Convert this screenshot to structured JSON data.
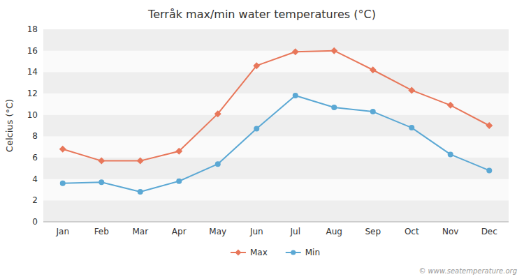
{
  "chart_data": {
    "type": "line",
    "title": "Terråk max/min water temperatures (°C)",
    "y_label": "Celcius (°C)",
    "annotations": [
      "© www.seatemperature.org"
    ],
    "categories": [
      "Jan",
      "Feb",
      "Mar",
      "Apr",
      "May",
      "Jun",
      "Jul",
      "Aug",
      "Sep",
      "Oct",
      "Nov",
      "Dec"
    ],
    "series": [
      {
        "name": "Max",
        "color": "#e8775a",
        "marker": "diamond",
        "values": [
          6.8,
          5.7,
          5.7,
          6.6,
          10.1,
          14.6,
          15.9,
          16.0,
          14.2,
          12.3,
          10.9,
          9.0
        ]
      },
      {
        "name": "Min",
        "color": "#5ba8d4",
        "marker": "circle",
        "values": [
          3.6,
          3.7,
          2.8,
          3.8,
          5.4,
          8.7,
          11.8,
          10.7,
          10.3,
          8.8,
          6.3,
          4.8
        ]
      }
    ],
    "ylim": [
      0,
      18
    ],
    "yticks": [
      0,
      2,
      4,
      6,
      8,
      10,
      12,
      14,
      16,
      18
    ],
    "grid": true,
    "legend": "bottom"
  }
}
